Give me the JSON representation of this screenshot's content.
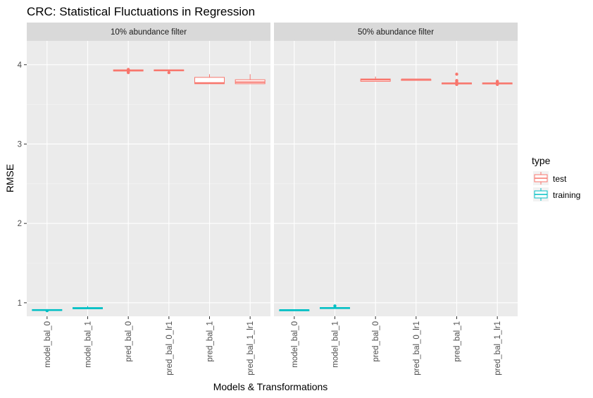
{
  "chart_data": {
    "type": "boxplot",
    "title": "CRC: Statistical Fluctuations in Regression",
    "xlabel": "Models & Transformations",
    "ylabel": "RMSE",
    "ylim": [
      0.83,
      4.3
    ],
    "yticks": [
      1,
      2,
      3,
      4
    ],
    "grid": true,
    "legend": {
      "title": "type",
      "position": "right",
      "entries": [
        {
          "name": "test",
          "color": "#F8766D"
        },
        {
          "name": "training",
          "color": "#00BFC4"
        }
      ]
    },
    "categories": [
      "model_bal_0",
      "model_bal_1",
      "pred_bal_0",
      "pred_bal_0_lr1",
      "pred_bal_1",
      "pred_bal_1_lr1"
    ],
    "panels": [
      {
        "strip": "10% abundance filter",
        "boxes": [
          {
            "category": "model_bal_0",
            "series": "training",
            "lower": 0.905,
            "q1": 0.91,
            "median": 0.91,
            "q3": 0.915,
            "upper": 0.92,
            "outliers": [
              0.9
            ]
          },
          {
            "category": "model_bal_1",
            "series": "training",
            "lower": 0.92,
            "q1": 0.925,
            "median": 0.93,
            "q3": 0.94,
            "upper": 0.96,
            "outliers": []
          },
          {
            "category": "pred_bal_0",
            "series": "test",
            "lower": 3.92,
            "q1": 3.92,
            "median": 3.925,
            "q3": 3.935,
            "upper": 3.94,
            "outliers": [
              3.9,
              3.91,
              3.94
            ]
          },
          {
            "category": "pred_bal_0_lr1",
            "series": "test",
            "lower": 3.92,
            "q1": 3.925,
            "median": 3.93,
            "q3": 3.935,
            "upper": 3.935,
            "outliers": [
              3.9
            ]
          },
          {
            "category": "pred_bal_1",
            "series": "test",
            "lower": 3.76,
            "q1": 3.76,
            "median": 3.77,
            "q3": 3.84,
            "upper": 3.88,
            "outliers": []
          },
          {
            "category": "pred_bal_1_lr1",
            "series": "test",
            "lower": 3.76,
            "q1": 3.76,
            "median": 3.78,
            "q3": 3.81,
            "upper": 3.88,
            "outliers": []
          }
        ]
      },
      {
        "strip": "50% abundance filter",
        "boxes": [
          {
            "category": "model_bal_0",
            "series": "training",
            "lower": 0.905,
            "q1": 0.908,
            "median": 0.91,
            "q3": 0.912,
            "upper": 0.915,
            "outliers": []
          },
          {
            "category": "model_bal_1",
            "series": "training",
            "lower": 0.925,
            "q1": 0.93,
            "median": 0.935,
            "q3": 0.94,
            "upper": 0.945,
            "outliers": [
              0.96
            ]
          },
          {
            "category": "pred_bal_0",
            "series": "test",
            "lower": 3.79,
            "q1": 3.79,
            "median": 3.81,
            "q3": 3.82,
            "upper": 3.85,
            "outliers": []
          },
          {
            "category": "pred_bal_0_lr1",
            "series": "test",
            "lower": 3.81,
            "q1": 3.81,
            "median": 3.815,
            "q3": 3.815,
            "upper": 3.82,
            "outliers": []
          },
          {
            "category": "pred_bal_1",
            "series": "test",
            "lower": 3.76,
            "q1": 3.76,
            "median": 3.765,
            "q3": 3.77,
            "upper": 3.77,
            "outliers": [
              3.75,
              3.78,
              3.8,
              3.88
            ]
          },
          {
            "category": "pred_bal_1_lr1",
            "series": "test",
            "lower": 3.76,
            "q1": 3.76,
            "median": 3.765,
            "q3": 3.77,
            "upper": 3.77,
            "outliers": [
              3.75,
              3.78,
              3.79
            ]
          }
        ]
      }
    ]
  }
}
